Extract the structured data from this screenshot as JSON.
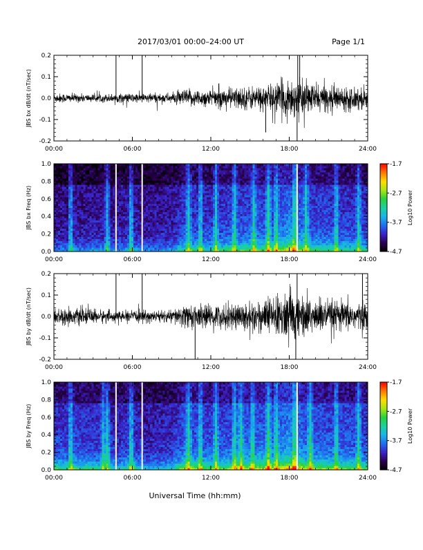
{
  "header": {
    "title": "2017/03/01   00:00–24:00 UT",
    "page_label": "Page 1/1"
  },
  "footer": {
    "xlabel": "Universal Time (hh:mm)"
  },
  "colors": {
    "trace": "#000000",
    "spike": "#ffffff",
    "background": "#ffffff",
    "colormap": [
      "#000000",
      "#2a0050",
      "#3a22c8",
      "#1f6ef0",
      "#19b4e8",
      "#18d2a0",
      "#28d23c",
      "#a8e614",
      "#ffdc00",
      "#ff7800",
      "#ff0000"
    ]
  },
  "chart_data": [
    {
      "type": "line",
      "panel": "bx-waveform",
      "ylabel": "JBS bx dB/dt (nT/sec)",
      "x_ticks": [
        "00:00",
        "06:00",
        "12:00",
        "18:00",
        "24:00"
      ],
      "xlim": [
        0,
        24
      ],
      "ylim": [
        -0.2,
        0.2
      ],
      "y_ticks": [
        "-0.2",
        "-0.1",
        "0.0",
        "0.1",
        "0.2"
      ],
      "y_tick_values": [
        -0.2,
        -0.1,
        0.0,
        0.1,
        0.2
      ],
      "amplitude_envelope": [
        [
          0,
          0.02
        ],
        [
          3,
          0.015
        ],
        [
          5,
          0.018
        ],
        [
          7,
          0.02
        ],
        [
          9,
          0.02
        ],
        [
          10,
          0.035
        ],
        [
          12,
          0.035
        ],
        [
          14,
          0.045
        ],
        [
          16,
          0.05
        ],
        [
          17,
          0.06
        ],
        [
          18,
          0.085
        ],
        [
          19.3,
          0.065
        ],
        [
          21,
          0.05
        ],
        [
          24,
          0.045
        ]
      ],
      "spikes": [
        {
          "x": 4.75,
          "y": 0.2
        },
        {
          "x": 6.75,
          "y": 0.2
        },
        {
          "x": 16.2,
          "y": -0.16
        },
        {
          "x": 18.6,
          "y": -0.2
        },
        {
          "x": 18.65,
          "y": 0.2
        },
        {
          "x": 18.8,
          "y": 0.2
        }
      ]
    },
    {
      "type": "heatmap",
      "panel": "bx-spectrogram",
      "ylabel": "JBS bx Freq (Hz)",
      "x_ticks": [
        "00:00",
        "06:00",
        "12:00",
        "18:00",
        "24:00"
      ],
      "xlim": [
        0,
        24
      ],
      "ylim": [
        0,
        1
      ],
      "y_ticks": [
        "0.0",
        "0.2",
        "0.4",
        "0.6",
        "0.8",
        "1.0"
      ],
      "y_tick_values": [
        0,
        0.2,
        0.4,
        0.6,
        0.8,
        1.0
      ],
      "colorbar": {
        "label": "Log10 Power",
        "range": [
          -4.7,
          -1.7
        ],
        "ticks": [
          "-1.7",
          "-2.7",
          "-3.7",
          "-4.7"
        ],
        "tick_values": [
          -1.7,
          -2.7,
          -3.7,
          -4.7
        ]
      },
      "activity_by_hour": [
        [
          0,
          0.3
        ],
        [
          4,
          0.35
        ],
        [
          5,
          0.35
        ],
        [
          6,
          0.4
        ],
        [
          7,
          0.3
        ],
        [
          9,
          0.35
        ],
        [
          10,
          0.55
        ],
        [
          12,
          0.5
        ],
        [
          14,
          0.6
        ],
        [
          17,
          0.65
        ],
        [
          18,
          0.85
        ],
        [
          19.5,
          0.6
        ],
        [
          22,
          0.55
        ],
        [
          24,
          0.5
        ]
      ],
      "vertical_streaks": [
        1.3,
        4.1,
        5.9,
        10.3,
        11.2,
        12.4,
        13.8,
        15.3,
        16.4,
        17.0,
        18.4,
        19.3,
        21.6,
        23.3
      ],
      "white_gaps": [
        4.75,
        6.75,
        18.6
      ]
    },
    {
      "type": "line",
      "panel": "by-waveform",
      "ylabel": "JBS by dB/dt (nT/sec)",
      "x_ticks": [
        "00:00",
        "06:00",
        "12:00",
        "18:00",
        "24:00"
      ],
      "xlim": [
        0,
        24
      ],
      "ylim": [
        -0.2,
        0.2
      ],
      "y_ticks": [
        "-0.2",
        "-0.1",
        "0.0",
        "0.1",
        "0.2"
      ],
      "y_tick_values": [
        -0.2,
        -0.1,
        0.0,
        0.1,
        0.2
      ],
      "amplitude_envelope": [
        [
          0,
          0.035
        ],
        [
          3,
          0.03
        ],
        [
          5,
          0.02
        ],
        [
          7,
          0.025
        ],
        [
          9,
          0.025
        ],
        [
          10,
          0.05
        ],
        [
          12,
          0.045
        ],
        [
          14,
          0.055
        ],
        [
          16,
          0.07
        ],
        [
          17,
          0.08
        ],
        [
          18,
          0.11
        ],
        [
          19.3,
          0.08
        ],
        [
          21,
          0.065
        ],
        [
          24,
          0.055
        ]
      ],
      "spikes": [
        {
          "x": 4.75,
          "y": 0.2
        },
        {
          "x": 6.75,
          "y": 0.2
        },
        {
          "x": 10.8,
          "y": -0.2
        },
        {
          "x": 18.5,
          "y": -0.2
        },
        {
          "x": 18.6,
          "y": 0.2
        },
        {
          "x": 23.6,
          "y": 0.2
        }
      ]
    },
    {
      "type": "heatmap",
      "panel": "by-spectrogram",
      "ylabel": "JBS by Freq (Hz)",
      "x_ticks": [
        "00:00",
        "06:00",
        "12:00",
        "18:00",
        "24:00"
      ],
      "xlim": [
        0,
        24
      ],
      "ylim": [
        0,
        1
      ],
      "y_ticks": [
        "0.0",
        "0.2",
        "0.4",
        "0.6",
        "0.8",
        "1.0"
      ],
      "y_tick_values": [
        0,
        0.2,
        0.4,
        0.6,
        0.8,
        1.0
      ],
      "colorbar": {
        "label": "Log10 Power",
        "range": [
          -4.7,
          -1.7
        ],
        "ticks": [
          "-1.7",
          "-2.7",
          "-3.7",
          "-4.7"
        ],
        "tick_values": [
          -1.7,
          -2.7,
          -3.7,
          -4.7
        ]
      },
      "activity_by_hour": [
        [
          0,
          0.55
        ],
        [
          2,
          0.55
        ],
        [
          4,
          0.5
        ],
        [
          5,
          0.45
        ],
        [
          6,
          0.55
        ],
        [
          7,
          0.4
        ],
        [
          9,
          0.45
        ],
        [
          10,
          0.7
        ],
        [
          12,
          0.6
        ],
        [
          14,
          0.7
        ],
        [
          17,
          0.75
        ],
        [
          18,
          0.95
        ],
        [
          19.5,
          0.7
        ],
        [
          22,
          0.65
        ],
        [
          24,
          0.6
        ]
      ],
      "vertical_streaks": [
        1.3,
        3.8,
        4.1,
        5.9,
        10.3,
        11.2,
        12.4,
        13.8,
        14.3,
        15.2,
        16.4,
        17.0,
        18.4,
        19.6,
        21.6,
        23.3
      ],
      "white_gaps": [
        4.75,
        6.75,
        18.6
      ]
    }
  ]
}
